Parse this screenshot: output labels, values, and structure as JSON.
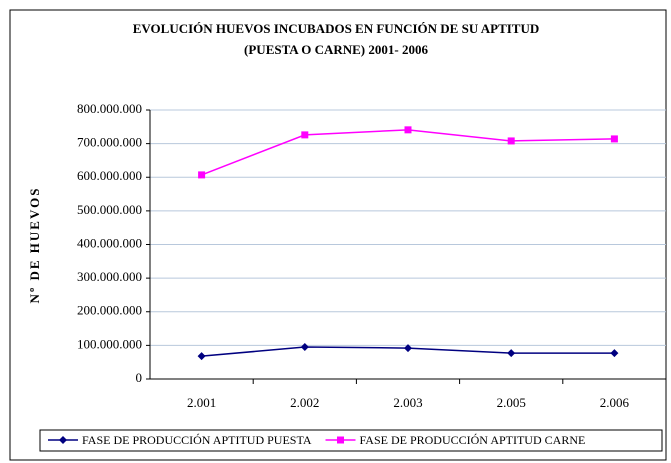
{
  "chart_data": {
    "type": "line",
    "title": [
      "EVOLUCIÓN HUEVOS INCUBADOS EN FUNCIÓN DE SU APTITUD",
      "(PUESTA O CARNE) 2001- 2006"
    ],
    "y_label": "Nº DE HUEVOS",
    "categories": [
      "2.001",
      "2.002",
      "2.003",
      "2.005",
      "2.006"
    ],
    "series": [
      {
        "name": "FASE DE PRODUCCIÓN APTITUD PUESTA",
        "color": "#000080",
        "marker": "diamond",
        "values": [
          68000000,
          95000000,
          92000000,
          77000000,
          77000000
        ]
      },
      {
        "name": "FASE DE PRODUCCIÓN APTITUD CARNE",
        "color": "#ff00ff",
        "marker": "square",
        "values": [
          607000000,
          726000000,
          741000000,
          708000000,
          714000000
        ]
      }
    ],
    "ylim": [
      0,
      800000000
    ],
    "yticks": [
      0,
      {
        "value": 100000000,
        "label": "100.000.000"
      },
      {
        "value": 200000000,
        "label": "200.000.000"
      },
      {
        "value": 300000000,
        "label": "300.000.000"
      },
      {
        "value": 400000000,
        "label": "400.000.000"
      },
      {
        "value": 500000000,
        "label": "500.000.000"
      },
      {
        "value": 600000000,
        "label": "600.000.000"
      },
      {
        "value": 700000000,
        "label": "700.000.000"
      },
      {
        "value": 800000000,
        "label": "800.000.000"
      }
    ],
    "grid": true,
    "legend": "bottom"
  }
}
